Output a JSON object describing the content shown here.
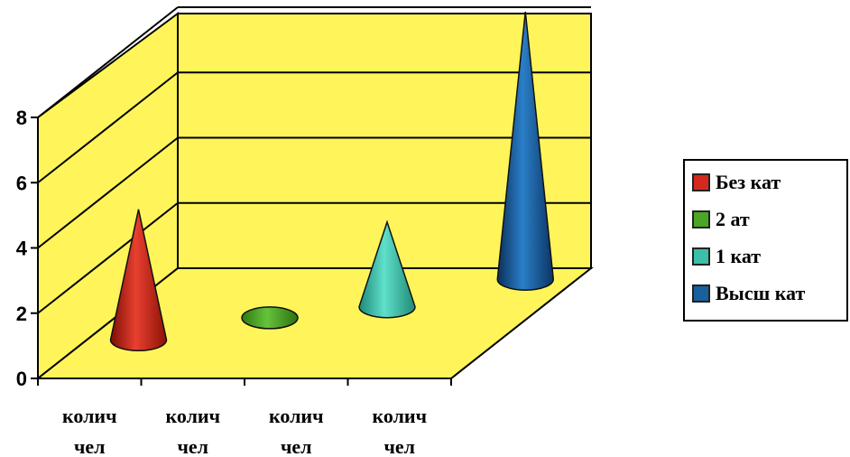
{
  "chart_data": {
    "type": "bar",
    "subtype": "3d-cone",
    "categories": [
      "колич\nчел",
      "колич\nчел",
      "колич\nчел",
      "колич\nчел"
    ],
    "series": [
      {
        "name": "Без кат",
        "values": [
          4,
          null,
          null,
          null
        ],
        "color": "#d42a1e"
      },
      {
        "name": "2 ат",
        "values": [
          null,
          0,
          null,
          null
        ],
        "color": "#4aa624"
      },
      {
        "name": "1 кат",
        "values": [
          null,
          null,
          2.6,
          null
        ],
        "color": "#3bbfa8"
      },
      {
        "name": "Высш кат",
        "values": [
          null,
          null,
          null,
          8.2
        ],
        "color": "#1a5f9e"
      }
    ],
    "ylim": [
      0,
      8
    ],
    "yticks": [
      "0",
      "2",
      "4",
      "6",
      "8"
    ],
    "wall_color": "#fff55a",
    "grid": true,
    "legend_position": "right"
  }
}
